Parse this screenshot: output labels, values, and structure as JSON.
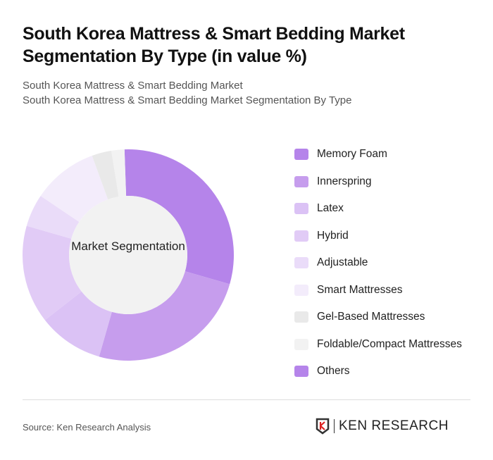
{
  "header": {
    "title": "South Korea Mattress & Smart Bedding Market Segmentation By Type (in value %)",
    "subtitle_1": "South Korea Mattress & Smart Bedding Market",
    "subtitle_2": "South Korea Mattress & Smart Bedding Market Segmentation By Type"
  },
  "center_label": "Market Segmentation",
  "footer": {
    "source": "Source: Ken Research Analysis",
    "logo_text": "KEN RESEARCH"
  },
  "chart_data": {
    "type": "pie",
    "subtype": "donut",
    "title": "South Korea Mattress & Smart Bedding Market Segmentation By Type (in value %)",
    "center_label": "Market Segmentation",
    "legend_position": "right",
    "categories": [
      "Memory Foam",
      "Innerspring",
      "Latex",
      "Hybrid",
      "Adjustable",
      "Smart Mattresses",
      "Gel-Based Mattresses",
      "Foldable/Compact Mattresses",
      "Others"
    ],
    "values": [
      30,
      25,
      10,
      15,
      5,
      10,
      3,
      2,
      0
    ],
    "colors": [
      "#b584ea",
      "#c69ded",
      "#dbc2f5",
      "#e1cbf6",
      "#eadcf9",
      "#f3ecfb",
      "#e9e9e9",
      "#f2f2f2",
      "#b584ea"
    ]
  }
}
